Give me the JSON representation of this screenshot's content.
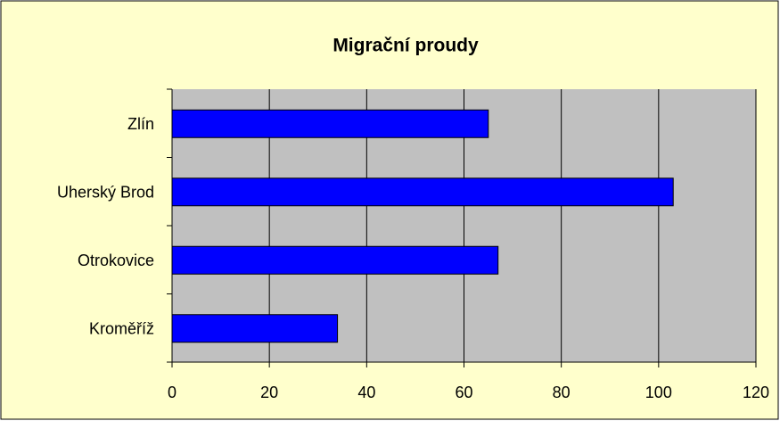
{
  "chart_data": {
    "type": "barh",
    "title": "Migrační proudy",
    "categories": [
      "Zlín",
      "Uherský Brod",
      "Otrokovice",
      "Kroměříž"
    ],
    "values": [
      65,
      103,
      67,
      34
    ],
    "color": "#0000ff",
    "xlim": [
      0,
      120
    ],
    "xticks": [
      0,
      20,
      40,
      60,
      80,
      100,
      120
    ],
    "grid": true
  }
}
